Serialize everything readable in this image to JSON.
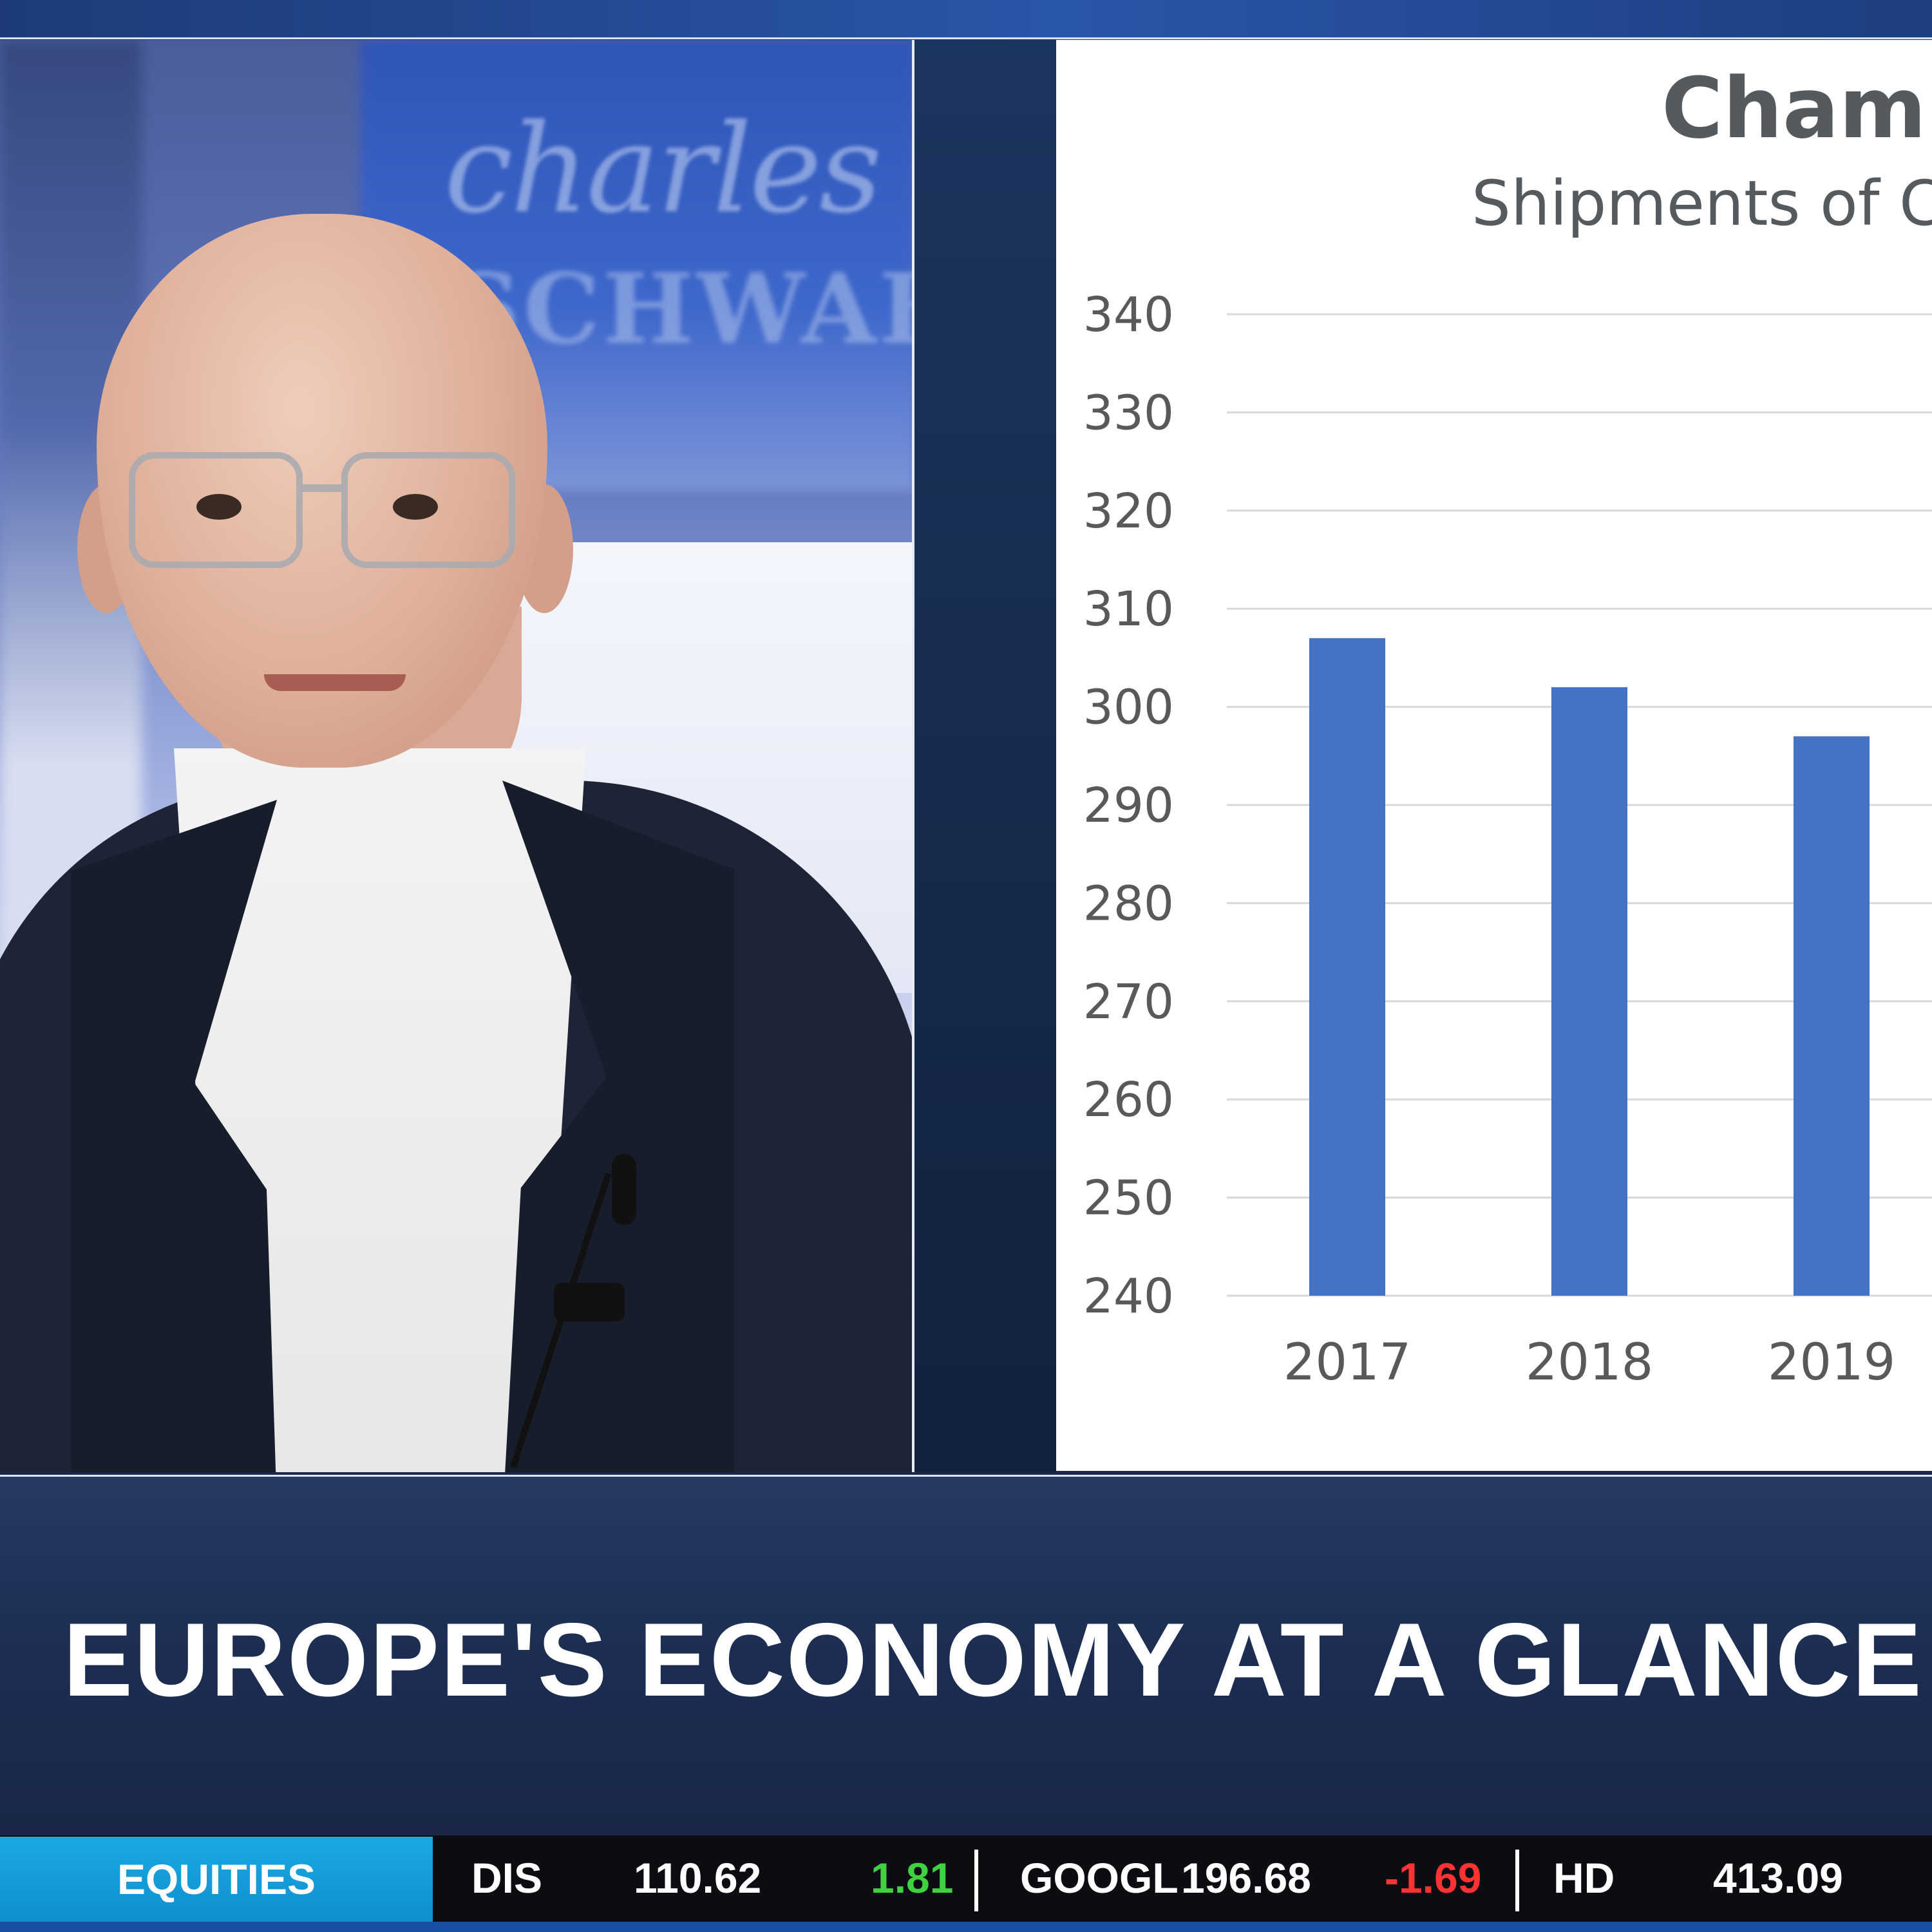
{
  "broadcast": {
    "headline": "EUROPE'S ECONOMY AT A GLANCE",
    "backdrop_brand_line1": "charles",
    "backdrop_brand_line2": "SCHWAB"
  },
  "chart_data": {
    "type": "bar",
    "title": "Champ",
    "subtitle": "Shipments of Ch",
    "categories": [
      "2017",
      "2018",
      "2019"
    ],
    "values": [
      307,
      302,
      297
    ],
    "ylim": [
      240,
      340
    ],
    "yticks": [
      "340",
      "330",
      "320",
      "310",
      "300",
      "290",
      "280",
      "270",
      "260",
      "250",
      "240"
    ],
    "ytick_values": [
      340,
      330,
      320,
      310,
      300,
      290,
      280,
      270,
      260,
      250,
      240
    ],
    "grid": true,
    "bar_color": "#4472c4",
    "xlabel": "",
    "ylabel": ""
  },
  "ticker": {
    "category": "EQUITIES",
    "items": [
      {
        "symbol": "DIS",
        "price": "110.62",
        "change": "1.81",
        "direction": "up"
      },
      {
        "symbol": "GOOGL",
        "price": "196.68",
        "change": "-1.69",
        "direction": "down"
      },
      {
        "symbol": "HD",
        "price": "413.09",
        "change": "",
        "direction": ""
      }
    ],
    "colors": {
      "up": "#3fd13f",
      "down": "#ff3333",
      "label_bg": "#1aa9e2"
    }
  }
}
